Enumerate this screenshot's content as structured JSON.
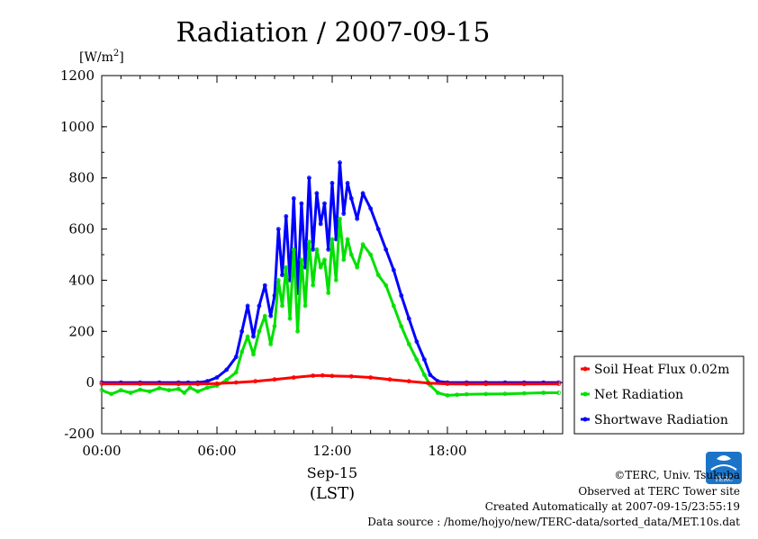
{
  "header": {
    "title": "Radiation / 2007-09-15",
    "unit": "[W/m",
    "unit_sup": "2",
    "unit_close": "]"
  },
  "footer": {
    "copyright": "©TERC, Univ. Tsukuba",
    "observed": "Observed at TERC Tower site",
    "created": "Created Automatically at 2007-09-15/23:55:19",
    "source": "Data source : /home/hojyo/new/TERC-data/sorted_data/MET.10s.dat",
    "logo_text": "TERC"
  },
  "chart_data": {
    "type": "line",
    "title": "Radiation / 2007-09-15",
    "ylabel": "[W/m2]",
    "xlabel": "Sep-15",
    "xlabel2": "(LST)",
    "ylim": [
      -200,
      1200
    ],
    "xlim": [
      0,
      24
    ],
    "yticks": [
      -200,
      0,
      200,
      400,
      600,
      800,
      1000,
      1200
    ],
    "xticks": [
      0,
      6,
      12,
      18
    ],
    "xtick_labels": [
      "00:00",
      "06:00",
      "12:00",
      "18:00"
    ],
    "grid": false,
    "legend_position": "right",
    "series": [
      {
        "name": "Soil Heat Flux 0.02m",
        "color": "#ff0000",
        "x": [
          0,
          2,
          4,
          5,
          6,
          7,
          8,
          9,
          10,
          11,
          11.5,
          12,
          13,
          14,
          15,
          16,
          17,
          18,
          19,
          20,
          22,
          23.8
        ],
        "values": [
          -5,
          -5,
          -6,
          -6,
          -4,
          0,
          5,
          12,
          20,
          27,
          28,
          26,
          24,
          20,
          12,
          5,
          -2,
          -5,
          -6,
          -6,
          -6,
          -5
        ]
      },
      {
        "name": "Net Radiation",
        "color": "#00e000",
        "x": [
          0,
          0.5,
          1,
          1.5,
          2,
          2.5,
          3,
          3.5,
          4,
          4.3,
          4.6,
          5,
          5.5,
          6,
          6.5,
          7,
          7.3,
          7.6,
          7.9,
          8.2,
          8.5,
          8.8,
          9,
          9.2,
          9.4,
          9.6,
          9.8,
          10,
          10.2,
          10.4,
          10.6,
          10.8,
          11,
          11.2,
          11.4,
          11.6,
          11.8,
          12,
          12.2,
          12.4,
          12.6,
          12.8,
          13,
          13.3,
          13.6,
          14,
          14.4,
          14.8,
          15.2,
          15.6,
          16,
          16.4,
          16.8,
          17.1,
          17.5,
          18,
          18.5,
          19,
          20,
          21,
          22,
          23,
          23.8
        ],
        "values": [
          -30,
          -45,
          -30,
          -40,
          -28,
          -35,
          -22,
          -30,
          -25,
          -40,
          -20,
          -35,
          -20,
          -12,
          10,
          40,
          120,
          180,
          110,
          200,
          260,
          150,
          220,
          400,
          300,
          450,
          250,
          520,
          200,
          480,
          300,
          550,
          380,
          520,
          450,
          480,
          350,
          560,
          400,
          640,
          480,
          560,
          500,
          450,
          540,
          500,
          420,
          380,
          300,
          220,
          150,
          90,
          30,
          -10,
          -40,
          -50,
          -48,
          -46,
          -45,
          -44,
          -42,
          -40,
          -40
        ]
      },
      {
        "name": "Shortwave Radiation",
        "color": "#0000ff",
        "x": [
          0,
          1,
          2,
          3,
          4,
          4.5,
          5,
          5.5,
          6,
          6.5,
          7,
          7.3,
          7.6,
          7.9,
          8.2,
          8.5,
          8.8,
          9,
          9.2,
          9.4,
          9.6,
          9.8,
          10,
          10.2,
          10.4,
          10.6,
          10.8,
          11,
          11.2,
          11.4,
          11.6,
          11.8,
          12,
          12.2,
          12.4,
          12.6,
          12.8,
          13,
          13.3,
          13.6,
          14,
          14.4,
          14.8,
          15.2,
          15.6,
          16,
          16.4,
          16.8,
          17.1,
          17.5,
          18,
          19,
          20,
          21,
          22,
          23,
          23.8
        ],
        "values": [
          0,
          0,
          0,
          0,
          0,
          0,
          0,
          5,
          20,
          50,
          100,
          200,
          300,
          180,
          300,
          380,
          260,
          340,
          600,
          420,
          650,
          400,
          720,
          350,
          700,
          450,
          800,
          520,
          740,
          620,
          700,
          520,
          780,
          560,
          860,
          660,
          780,
          720,
          640,
          740,
          680,
          600,
          520,
          440,
          340,
          250,
          160,
          90,
          30,
          5,
          0,
          0,
          0,
          0,
          0,
          0,
          0
        ]
      }
    ]
  }
}
